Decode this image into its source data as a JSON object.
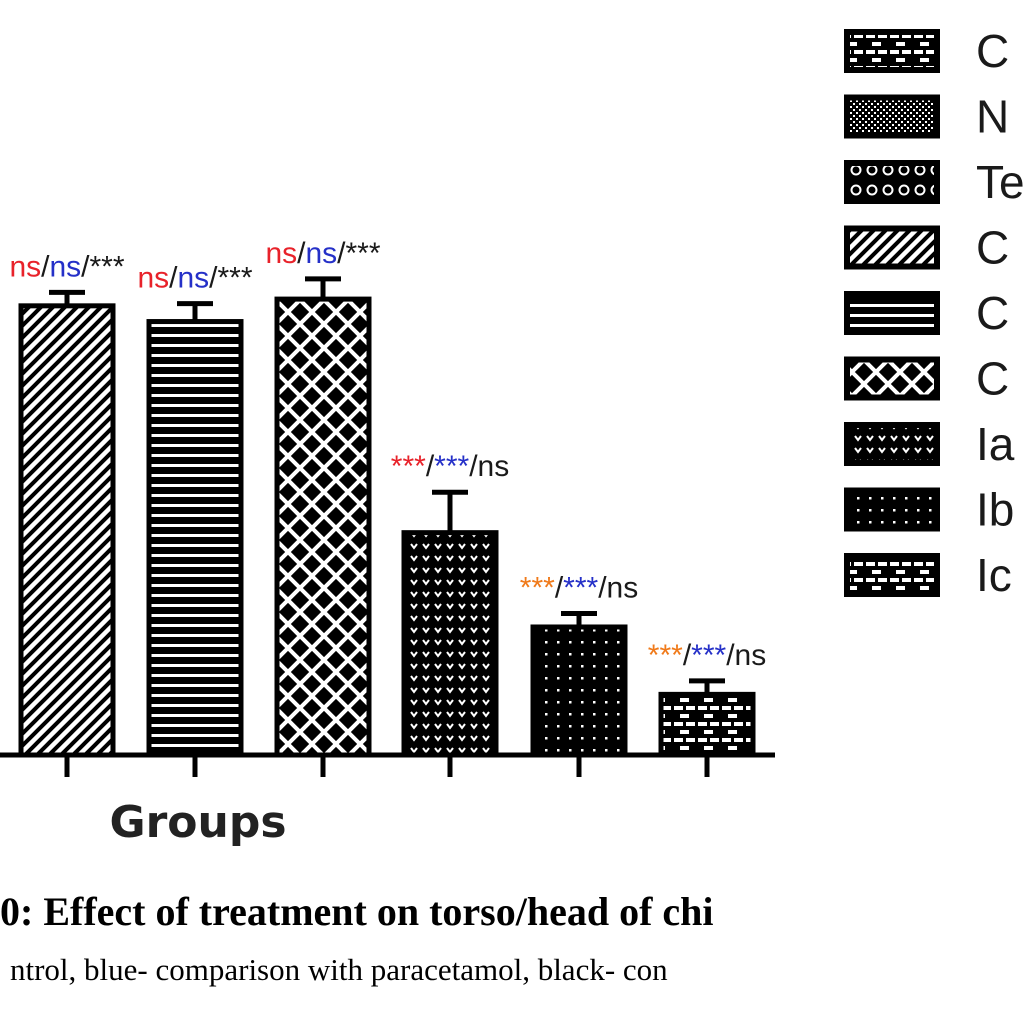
{
  "chart_data": {
    "type": "bar",
    "xlabel": "Groups",
    "ylabel": "",
    "ylim": [
      0,
      120
    ],
    "bars": [
      {
        "pattern": "diag",
        "value": 100,
        "error": 3,
        "annotation": [
          {
            "text": "ns",
            "color": "#e8222a"
          },
          {
            "text": "/",
            "color": "#1a1a1a"
          },
          {
            "text": "ns",
            "color": "#2530c8"
          },
          {
            "text": "/***",
            "color": "#1a1a1a"
          }
        ]
      },
      {
        "pattern": "hlines",
        "value": 96.5,
        "error": 4,
        "annotation": [
          {
            "text": "ns",
            "color": "#e8222a"
          },
          {
            "text": "/",
            "color": "#1a1a1a"
          },
          {
            "text": "ns",
            "color": "#2530c8"
          },
          {
            "text": "/***",
            "color": "#1a1a1a"
          }
        ]
      },
      {
        "pattern": "xdiamond",
        "value": 101.5,
        "error": 4.5,
        "annotation": [
          {
            "text": "ns",
            "color": "#e8222a"
          },
          {
            "text": "/",
            "color": "#1a1a1a"
          },
          {
            "text": "ns",
            "color": "#2530c8"
          },
          {
            "text": "/***",
            "color": "#1a1a1a"
          }
        ]
      },
      {
        "pattern": "hearts",
        "value": 49.5,
        "error": 9,
        "annotation": [
          {
            "text": "***",
            "color": "#e8222a"
          },
          {
            "text": "/",
            "color": "#1a1a1a"
          },
          {
            "text": "***",
            "color": "#2530c8"
          },
          {
            "text": "/ns",
            "color": "#1a1a1a"
          }
        ]
      },
      {
        "pattern": "dots",
        "value": 28.5,
        "error": 3,
        "annotation": [
          {
            "text": "***",
            "color": "#f07a1a"
          },
          {
            "text": "/",
            "color": "#1a1a1a"
          },
          {
            "text": "***",
            "color": "#2530c8"
          },
          {
            "text": "/ns",
            "color": "#1a1a1a"
          }
        ]
      },
      {
        "pattern": "bricks",
        "value": 13.5,
        "error": 3,
        "annotation": [
          {
            "text": "***",
            "color": "#f07a1a"
          },
          {
            "text": "/",
            "color": "#1a1a1a"
          },
          {
            "text": "***",
            "color": "#2530c8"
          },
          {
            "text": "/ns",
            "color": "#1a1a1a"
          }
        ]
      }
    ],
    "legend": [
      {
        "label": "C",
        "pattern": "bricks"
      },
      {
        "label": "N",
        "pattern": "fine"
      },
      {
        "label": "Te",
        "pattern": "circles"
      },
      {
        "label": "C",
        "pattern": "diag"
      },
      {
        "label": "C",
        "pattern": "hlines"
      },
      {
        "label": "C",
        "pattern": "xdiamond"
      },
      {
        "label": "Ia",
        "pattern": "hearts"
      },
      {
        "label": "Ib",
        "pattern": "dots"
      },
      {
        "label": "Ic",
        "pattern": "bricks"
      }
    ]
  },
  "caption": {
    "title": "0: Effect of treatment on torso/head of chi",
    "subtitle": "ntrol, blue- comparison with paracetamol, black- con"
  }
}
